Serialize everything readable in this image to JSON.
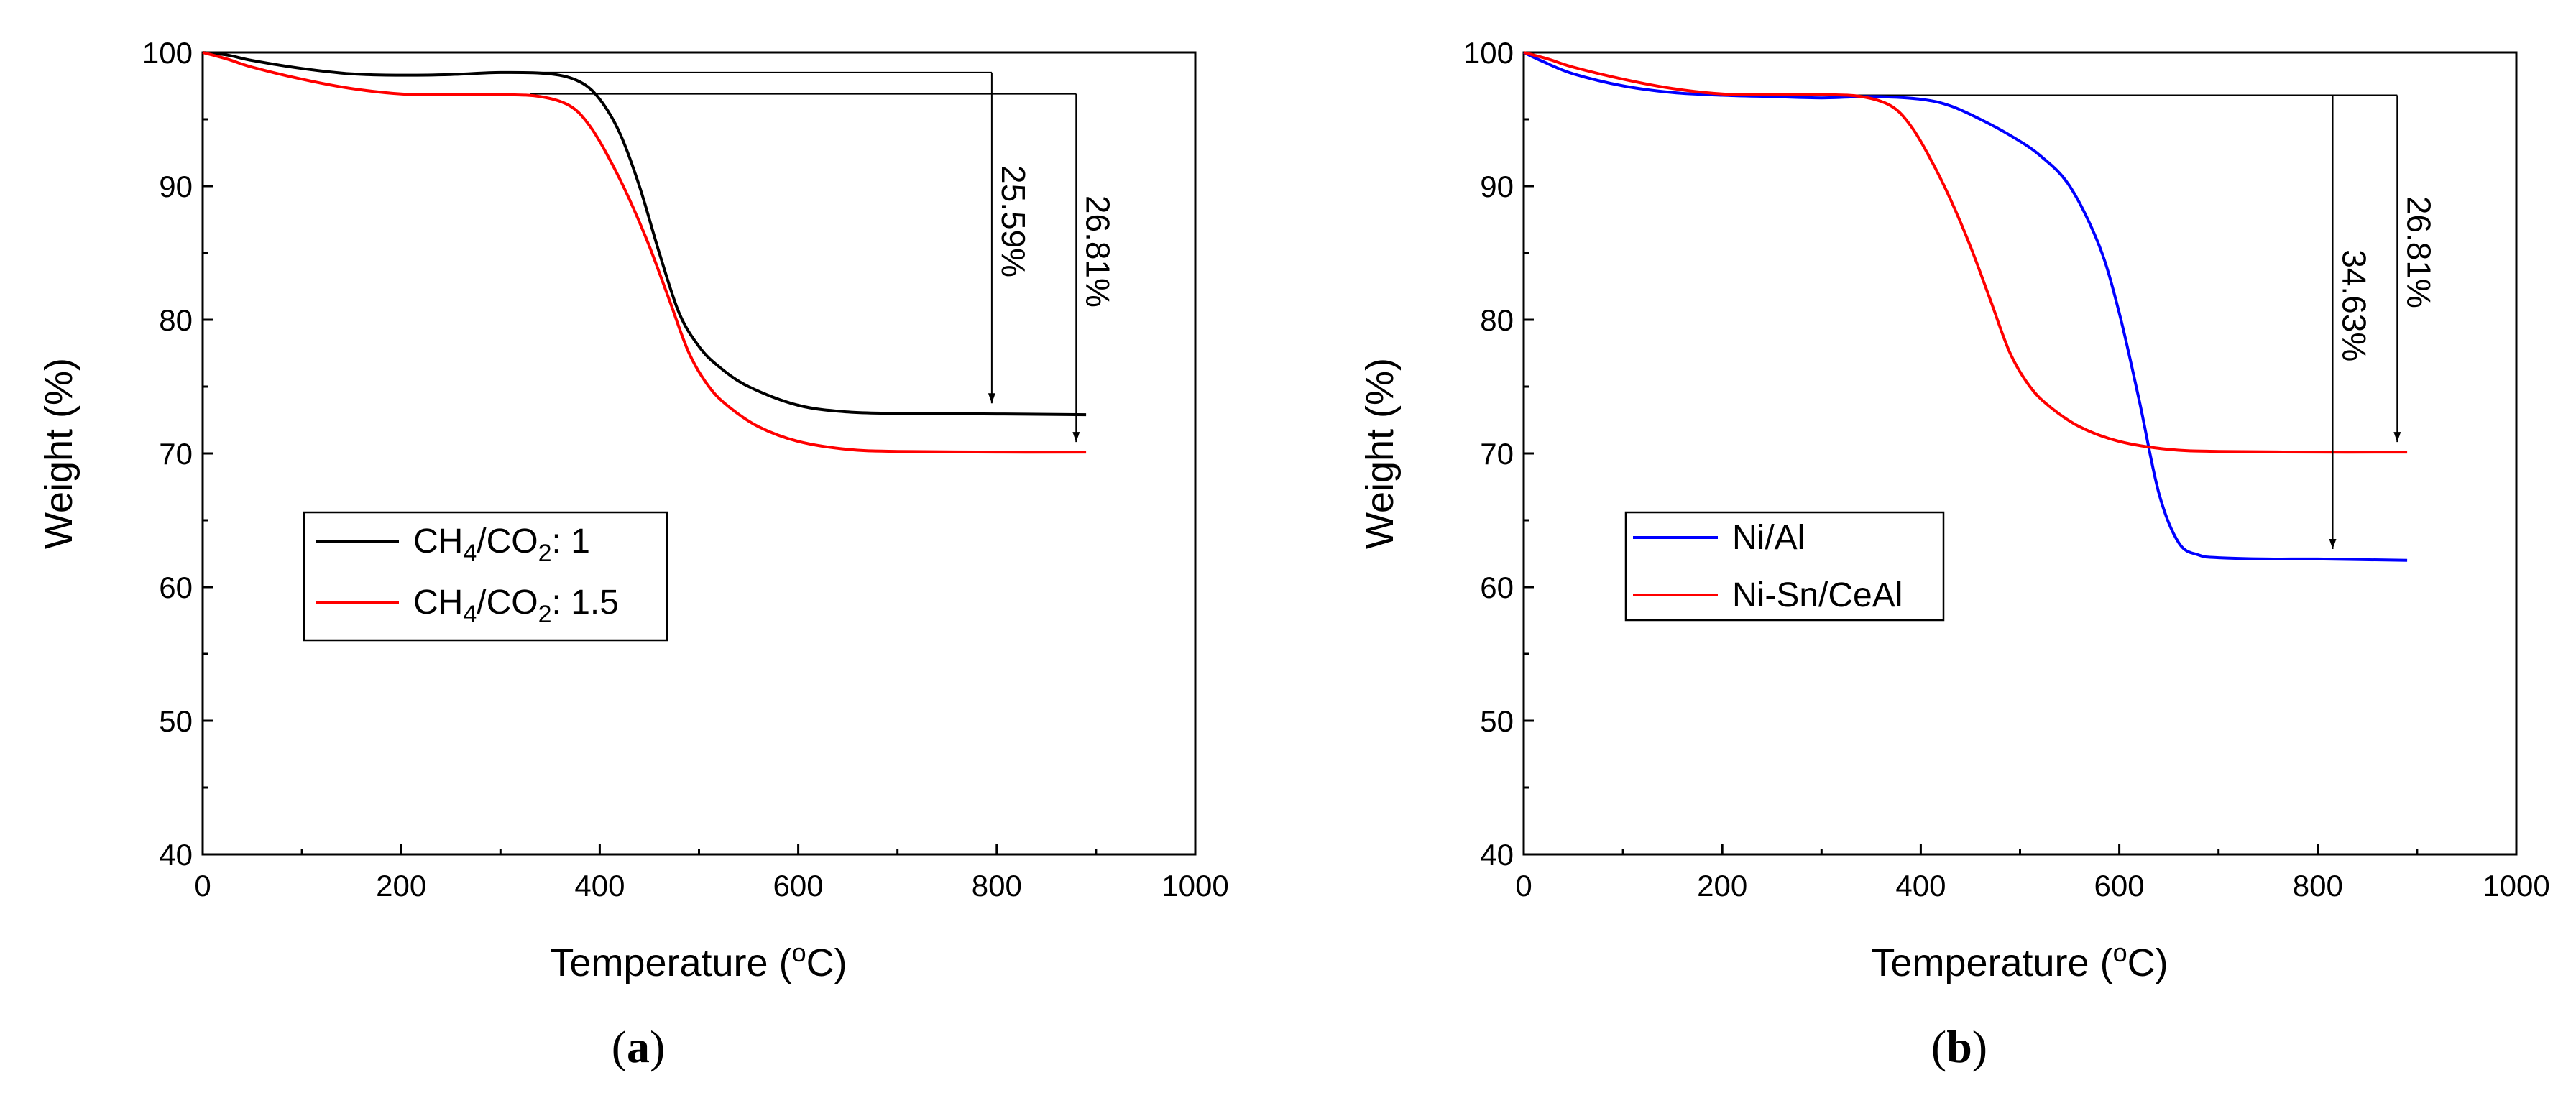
{
  "chart_data": [
    {
      "panel_label": {
        "open": "(",
        "letter": "a",
        "close": ")"
      },
      "type": "line",
      "xlabel": "Temperature (",
      "xlabel_sup": "o",
      "xlabel_suffix": "C)",
      "ylabel": "Weight (%)",
      "xlim": [
        0,
        1000
      ],
      "ylim": [
        40,
        100
      ],
      "xticks": [
        0,
        200,
        400,
        600,
        800,
        1000
      ],
      "yticks": [
        40,
        50,
        60,
        70,
        80,
        90,
        100
      ],
      "legend_position": "lower-left",
      "series": [
        {
          "name_main": "CH",
          "name_sub1": "4",
          "name_mid": "/CO",
          "name_sub2": "2",
          "name_tail": ": 1",
          "color": "#000000",
          "x": [
            0,
            25,
            50,
            100,
            150,
            200,
            250,
            300,
            350,
            380,
            400,
            420,
            440,
            460,
            480,
            500,
            520,
            550,
            600,
            650,
            700,
            800,
            890
          ],
          "y": [
            100,
            99.8,
            99.4,
            98.8,
            98.4,
            98.3,
            98.35,
            98.5,
            98.4,
            97.8,
            96.5,
            94,
            90,
            85,
            80.5,
            78,
            76.5,
            75,
            73.6,
            73.1,
            73,
            72.95,
            72.9
          ]
        },
        {
          "name_main": "CH",
          "name_sub1": "4",
          "name_mid": "/CO",
          "name_sub2": "2",
          "name_tail": ": 1.5",
          "color": "#ff0000",
          "x": [
            0,
            25,
            50,
            100,
            150,
            200,
            250,
            300,
            340,
            370,
            390,
            410,
            430,
            450,
            470,
            490,
            510,
            530,
            560,
            600,
            650,
            700,
            800,
            890
          ],
          "y": [
            100,
            99.5,
            98.9,
            98,
            97.3,
            96.9,
            96.85,
            96.85,
            96.7,
            96,
            94.5,
            92,
            89,
            85.5,
            81.5,
            77.5,
            75,
            73.5,
            72,
            70.9,
            70.3,
            70.15,
            70.1,
            70.1
          ]
        }
      ],
      "annotations": [
        {
          "text": "25.59%",
          "x": 795,
          "y_top": 98.5,
          "y_bottom": 73
        },
        {
          "text": "26.81%",
          "x": 880,
          "y_top": 96.9,
          "y_bottom": 70.1
        }
      ]
    },
    {
      "panel_label": {
        "open": "(",
        "letter": "b",
        "close": ")"
      },
      "type": "line",
      "xlabel": "Temperature (",
      "xlabel_sup": "o",
      "xlabel_suffix": "C)",
      "ylabel": "Weight (%)",
      "xlim": [
        0,
        1000
      ],
      "ylim": [
        40,
        100
      ],
      "xticks": [
        0,
        200,
        400,
        600,
        800,
        1000
      ],
      "yticks": [
        40,
        50,
        60,
        70,
        80,
        90,
        100
      ],
      "legend_position": "lower-left",
      "series": [
        {
          "name": "Ni/Al",
          "color": "#0000ff",
          "x": [
            0,
            20,
            50,
            100,
            150,
            200,
            250,
            300,
            350,
            400,
            430,
            460,
            490,
            520,
            550,
            580,
            600,
            620,
            640,
            660,
            680,
            700,
            750,
            800,
            890
          ],
          "y": [
            100,
            99.3,
            98.4,
            97.5,
            97.0,
            96.8,
            96.7,
            96.6,
            96.7,
            96.5,
            96.0,
            95.0,
            93.8,
            92.3,
            90.0,
            85.5,
            80.5,
            74.0,
            67.0,
            63.3,
            62.4,
            62.2,
            62.1,
            62.1,
            62.0
          ]
        },
        {
          "name": "Ni-Sn/CeAl",
          "color": "#ff0000",
          "x": [
            0,
            25,
            50,
            100,
            150,
            200,
            250,
            300,
            340,
            370,
            390,
            410,
            430,
            450,
            470,
            490,
            510,
            530,
            560,
            600,
            650,
            700,
            800,
            890
          ],
          "y": [
            100,
            99.5,
            98.9,
            98,
            97.3,
            96.9,
            96.85,
            96.85,
            96.7,
            96,
            94.5,
            92,
            89,
            85.5,
            81.5,
            77.5,
            75,
            73.5,
            72,
            70.9,
            70.3,
            70.15,
            70.1,
            70.1
          ]
        }
      ],
      "annotations": [
        {
          "text": "34.63%",
          "x": 815,
          "y_top": 96.8,
          "y_bottom": 62.1
        },
        {
          "text": "26.81%",
          "x": 880,
          "y_top": 96.8,
          "y_bottom": 70.1
        }
      ]
    }
  ]
}
